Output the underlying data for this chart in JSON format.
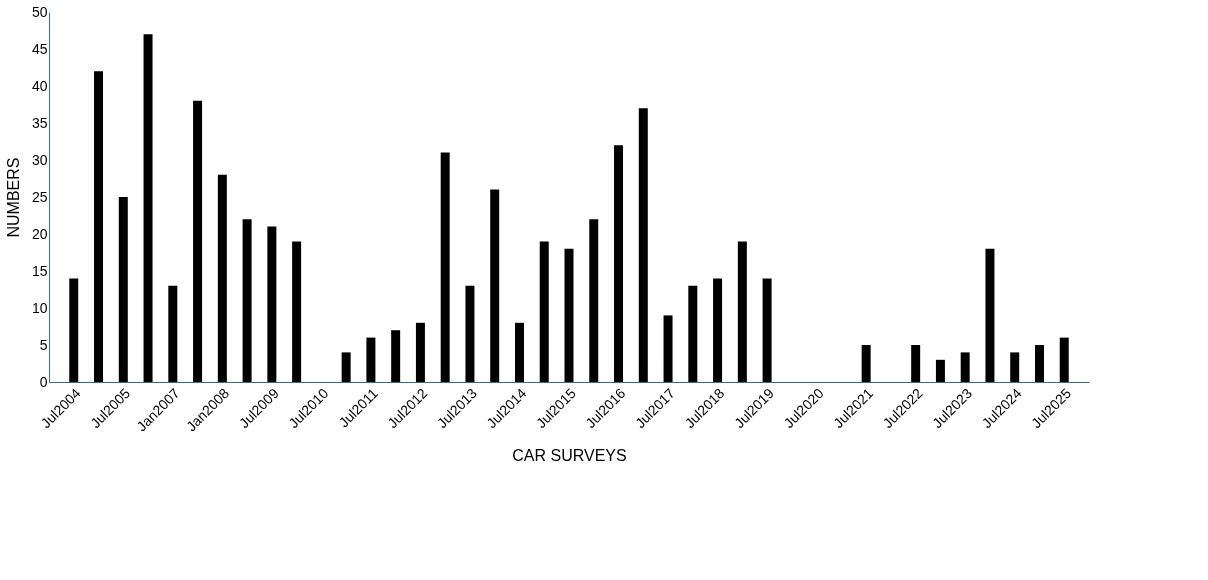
{
  "chart_data": {
    "type": "bar",
    "xlabel": "CAR SURVEYS",
    "ylabel": "NUMBERS",
    "categories": [
      "Jul2004",
      null,
      "Jul2005",
      null,
      "Jan2007",
      null,
      "Jan2008",
      null,
      "Jul2009",
      null,
      "Jul2010",
      null,
      "Jul2011",
      null,
      "Jul2012",
      null,
      "Jul2013",
      null,
      "Jul2014",
      null,
      "Jul2015",
      null,
      "Jul2016",
      null,
      "Jul2017",
      null,
      "Jul2018",
      null,
      "Jul2019",
      null,
      "Jul2020",
      null,
      "Jul2021",
      null,
      "Jul2022",
      null,
      "Jul2023",
      null,
      "Jul2024",
      null,
      "Jul2025"
    ],
    "values": [
      14,
      42,
      25,
      47,
      13,
      38,
      28,
      22,
      21,
      19,
      null,
      4,
      6,
      7,
      8,
      31,
      13,
      26,
      8,
      19,
      18,
      22,
      32,
      37,
      9,
      13,
      14,
      19,
      14,
      null,
      null,
      null,
      5,
      null,
      5,
      3,
      4,
      18,
      4,
      5,
      6
    ],
    "color": "#000000",
    "ylim": [
      0,
      50
    ],
    "yticks": [
      0,
      5,
      10,
      15,
      20,
      25,
      30,
      35,
      40,
      45,
      50
    ],
    "grid": false
  }
}
